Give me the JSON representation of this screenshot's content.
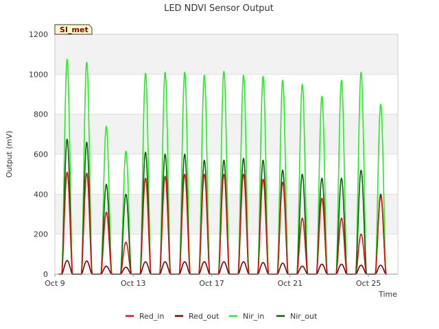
{
  "chart_data": {
    "type": "line",
    "title": "LED NDVI Sensor Output",
    "tag": "SI_met",
    "xlabel": "Time",
    "ylabel": "Output (mV)",
    "xlim": [
      0,
      17.5
    ],
    "ylim": [
      0,
      1200
    ],
    "yticks": [
      0,
      200,
      400,
      600,
      800,
      1000,
      1200
    ],
    "xticks": [
      {
        "x": 0,
        "label": "Oct 9"
      },
      {
        "x": 4,
        "label": "Oct 13"
      },
      {
        "x": 8,
        "label": "Oct 17"
      },
      {
        "x": 12,
        "label": "Oct 21"
      },
      {
        "x": 16,
        "label": "Oct 25"
      }
    ],
    "grid": true,
    "legend": "bottom",
    "series": [
      {
        "name": "Red_in",
        "color": "#dd1111",
        "daily_peaks": [
          510,
          505,
          310,
          160,
          480,
          490,
          500,
          500,
          500,
          500,
          475,
          460,
          280,
          380,
          280,
          200,
          390
        ]
      },
      {
        "name": "Red_out",
        "color": "#7a0000",
        "daily_peaks": [
          68,
          66,
          40,
          35,
          62,
          62,
          62,
          62,
          62,
          62,
          58,
          55,
          40,
          50,
          50,
          45,
          45
        ]
      },
      {
        "name": "Nir_in",
        "color": "#22ee22",
        "daily_peaks": [
          1075,
          1060,
          740,
          615,
          1005,
          1010,
          1010,
          995,
          1015,
          995,
          990,
          970,
          950,
          890,
          970,
          1010,
          850
        ]
      },
      {
        "name": "Nir_out",
        "color": "#0b5c0b",
        "daily_peaks": [
          675,
          660,
          450,
          400,
          610,
          600,
          600,
          570,
          570,
          580,
          570,
          520,
          500,
          480,
          480,
          520,
          400
        ]
      }
    ]
  }
}
